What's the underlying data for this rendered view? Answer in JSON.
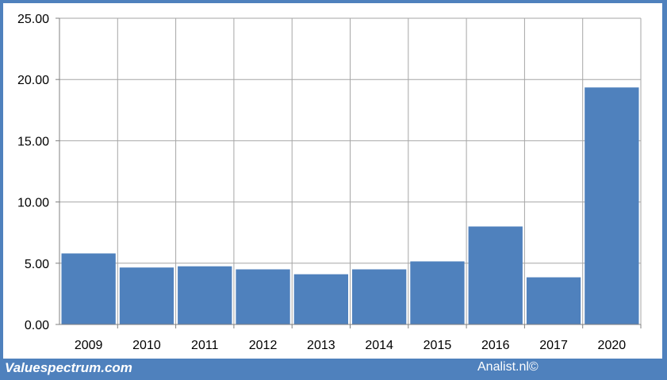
{
  "chart_data": {
    "type": "bar",
    "categories": [
      "2009",
      "2010",
      "2011",
      "2012",
      "2013",
      "2014",
      "2015",
      "2016",
      "2017",
      "2020"
    ],
    "values": [
      5.8,
      4.65,
      4.75,
      4.5,
      4.1,
      4.5,
      5.15,
      8.0,
      3.85,
      19.35
    ],
    "y_ticks": [
      "0.00",
      "5.00",
      "10.00",
      "15.00",
      "20.00",
      "25.00"
    ],
    "ylim": [
      0,
      25
    ],
    "grid": true,
    "bar_color": "#4f81bd",
    "grid_color": "#a6a6a6"
  },
  "footer": {
    "left": "Valuespectrum.com",
    "right": "Analist.nl©"
  },
  "colors": {
    "frame": "#4f81bd",
    "panel": "#ffffff"
  }
}
